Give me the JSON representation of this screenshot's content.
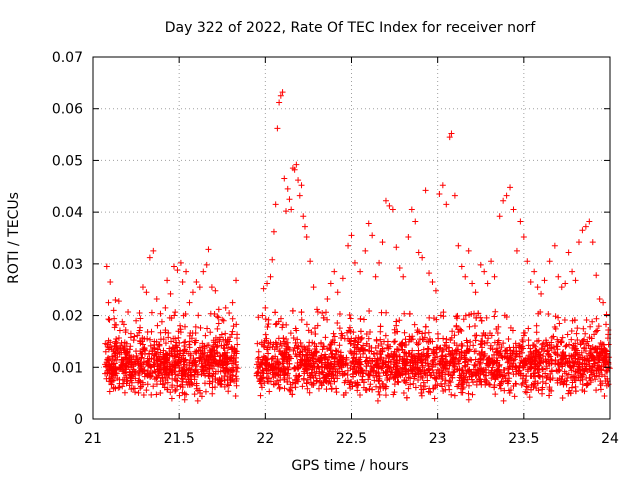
{
  "chart_data": {
    "type": "scatter",
    "title": "Day 322 of 2022, Rate Of TEC Index for receiver norf",
    "xlabel": "GPS time / hours",
    "ylabel": "ROTI / TECUs",
    "xlim": [
      21,
      24
    ],
    "ylim": [
      0,
      0.07
    ],
    "x_ticks": [
      21,
      21.5,
      22,
      22.5,
      23,
      23.5,
      24
    ],
    "x_tick_labels": [
      "21",
      "21.5",
      "22",
      "22.5",
      "23",
      "23.5",
      "24"
    ],
    "y_ticks": [
      0,
      0.01,
      0.02,
      0.03,
      0.04,
      0.05,
      0.06,
      0.07
    ],
    "y_tick_labels": [
      "0",
      "0.01",
      "0.02",
      "0.03",
      "0.04",
      "0.05",
      "0.06",
      "0.07"
    ],
    "grid": true,
    "marker": "+",
    "color": "#ff0000",
    "series": [
      {
        "name": "ROTI",
        "points": [
          [
            21.08,
            0.0295
          ],
          [
            21.09,
            0.0225
          ],
          [
            21.1,
            0.0265
          ],
          [
            21.12,
            0.021
          ],
          [
            21.13,
            0.023
          ],
          [
            21.15,
            0.0228
          ],
          [
            21.17,
            0.0188
          ],
          [
            21.19,
            0.0172
          ],
          [
            21.22,
            0.0165
          ],
          [
            21.25,
            0.019
          ],
          [
            21.27,
            0.0205
          ],
          [
            21.29,
            0.0255
          ],
          [
            21.31,
            0.0245
          ],
          [
            21.33,
            0.0312
          ],
          [
            21.35,
            0.0325
          ],
          [
            21.37,
            0.0232
          ],
          [
            21.4,
            0.0188
          ],
          [
            21.42,
            0.0215
          ],
          [
            21.43,
            0.0268
          ],
          [
            21.45,
            0.0242
          ],
          [
            21.47,
            0.0295
          ],
          [
            21.49,
            0.0288
          ],
          [
            21.51,
            0.0302
          ],
          [
            21.52,
            0.0265
          ],
          [
            21.54,
            0.0285
          ],
          [
            21.56,
            0.0225
          ],
          [
            21.58,
            0.0245
          ],
          [
            21.6,
            0.0265
          ],
          [
            21.62,
            0.0255
          ],
          [
            21.64,
            0.0285
          ],
          [
            21.66,
            0.0298
          ],
          [
            21.67,
            0.0328
          ],
          [
            21.69,
            0.0255
          ],
          [
            21.71,
            0.0248
          ],
          [
            21.73,
            0.0212
          ],
          [
            21.75,
            0.0192
          ],
          [
            21.77,
            0.0215
          ],
          [
            21.79,
            0.0205
          ],
          [
            21.81,
            0.0225
          ],
          [
            21.83,
            0.0268
          ],
          [
            21.99,
            0.0252
          ],
          [
            22.0,
            0.0215
          ],
          [
            22.01,
            0.0262
          ],
          [
            22.03,
            0.0275
          ],
          [
            22.04,
            0.0308
          ],
          [
            22.05,
            0.0362
          ],
          [
            22.06,
            0.0415
          ],
          [
            22.07,
            0.0562
          ],
          [
            22.08,
            0.0612
          ],
          [
            22.09,
            0.0625
          ],
          [
            22.1,
            0.0632
          ],
          [
            22.11,
            0.0465
          ],
          [
            22.12,
            0.0402
          ],
          [
            22.13,
            0.0445
          ],
          [
            22.14,
            0.0425
          ],
          [
            22.15,
            0.0405
          ],
          [
            22.16,
            0.0485
          ],
          [
            22.17,
            0.0482
          ],
          [
            22.18,
            0.0492
          ],
          [
            22.19,
            0.0462
          ],
          [
            22.2,
            0.0432
          ],
          [
            22.21,
            0.0452
          ],
          [
            22.22,
            0.0392
          ],
          [
            22.23,
            0.0372
          ],
          [
            22.24,
            0.0352
          ],
          [
            22.26,
            0.0305
          ],
          [
            22.28,
            0.0255
          ],
          [
            22.3,
            0.0212
          ],
          [
            22.33,
            0.0205
          ],
          [
            22.36,
            0.0232
          ],
          [
            22.38,
            0.0262
          ],
          [
            22.4,
            0.0285
          ],
          [
            22.42,
            0.0245
          ],
          [
            22.45,
            0.0272
          ],
          [
            22.48,
            0.0335
          ],
          [
            22.5,
            0.0355
          ],
          [
            22.52,
            0.0302
          ],
          [
            22.55,
            0.0285
          ],
          [
            22.58,
            0.0325
          ],
          [
            22.6,
            0.0378
          ],
          [
            22.62,
            0.0355
          ],
          [
            22.64,
            0.0275
          ],
          [
            22.66,
            0.0302
          ],
          [
            22.68,
            0.0342
          ],
          [
            22.7,
            0.0422
          ],
          [
            22.72,
            0.0412
          ],
          [
            22.74,
            0.0405
          ],
          [
            22.76,
            0.0332
          ],
          [
            22.78,
            0.0292
          ],
          [
            22.8,
            0.0275
          ],
          [
            22.83,
            0.0352
          ],
          [
            22.85,
            0.0405
          ],
          [
            22.87,
            0.0382
          ],
          [
            22.89,
            0.0322
          ],
          [
            22.91,
            0.0312
          ],
          [
            22.93,
            0.0442
          ],
          [
            22.95,
            0.0282
          ],
          [
            22.97,
            0.0265
          ],
          [
            22.99,
            0.0248
          ],
          [
            23.01,
            0.0435
          ],
          [
            23.03,
            0.0452
          ],
          [
            23.05,
            0.0415
          ],
          [
            23.07,
            0.0545
          ],
          [
            23.08,
            0.0552
          ],
          [
            23.1,
            0.0432
          ],
          [
            23.12,
            0.0335
          ],
          [
            23.14,
            0.0295
          ],
          [
            23.16,
            0.0275
          ],
          [
            23.18,
            0.0325
          ],
          [
            23.2,
            0.0262
          ],
          [
            23.22,
            0.0245
          ],
          [
            23.25,
            0.0298
          ],
          [
            23.27,
            0.0285
          ],
          [
            23.29,
            0.0262
          ],
          [
            23.31,
            0.0305
          ],
          [
            23.33,
            0.0275
          ],
          [
            23.36,
            0.0392
          ],
          [
            23.38,
            0.0422
          ],
          [
            23.4,
            0.0432
          ],
          [
            23.42,
            0.0448
          ],
          [
            23.44,
            0.0405
          ],
          [
            23.46,
            0.0325
          ],
          [
            23.48,
            0.0382
          ],
          [
            23.5,
            0.0352
          ],
          [
            23.52,
            0.0305
          ],
          [
            23.54,
            0.0265
          ],
          [
            23.56,
            0.0285
          ],
          [
            23.58,
            0.0255
          ],
          [
            23.6,
            0.0242
          ],
          [
            23.62,
            0.0268
          ],
          [
            23.65,
            0.0305
          ],
          [
            23.68,
            0.0335
          ],
          [
            23.7,
            0.0275
          ],
          [
            23.72,
            0.0255
          ],
          [
            23.74,
            0.0262
          ],
          [
            23.76,
            0.0322
          ],
          [
            23.78,
            0.0285
          ],
          [
            23.8,
            0.0268
          ],
          [
            23.82,
            0.0342
          ],
          [
            23.84,
            0.0365
          ],
          [
            23.86,
            0.0372
          ],
          [
            23.88,
            0.0382
          ],
          [
            23.9,
            0.0342
          ],
          [
            23.92,
            0.0278
          ],
          [
            23.94,
            0.0232
          ],
          [
            23.96,
            0.0225
          ],
          [
            23.98,
            0.0202
          ],
          [
            23.99,
            0.0172
          ]
        ],
        "dense_band": {
          "segments": [
            [
              21.07,
              21.84
            ],
            [
              21.95,
              24.0
            ]
          ],
          "center_roti": 0.0105,
          "spread_roti": 0.0042,
          "min_roti": 0.0035,
          "max_roti": 0.021,
          "points_per_hour": 1150
        }
      }
    ]
  }
}
